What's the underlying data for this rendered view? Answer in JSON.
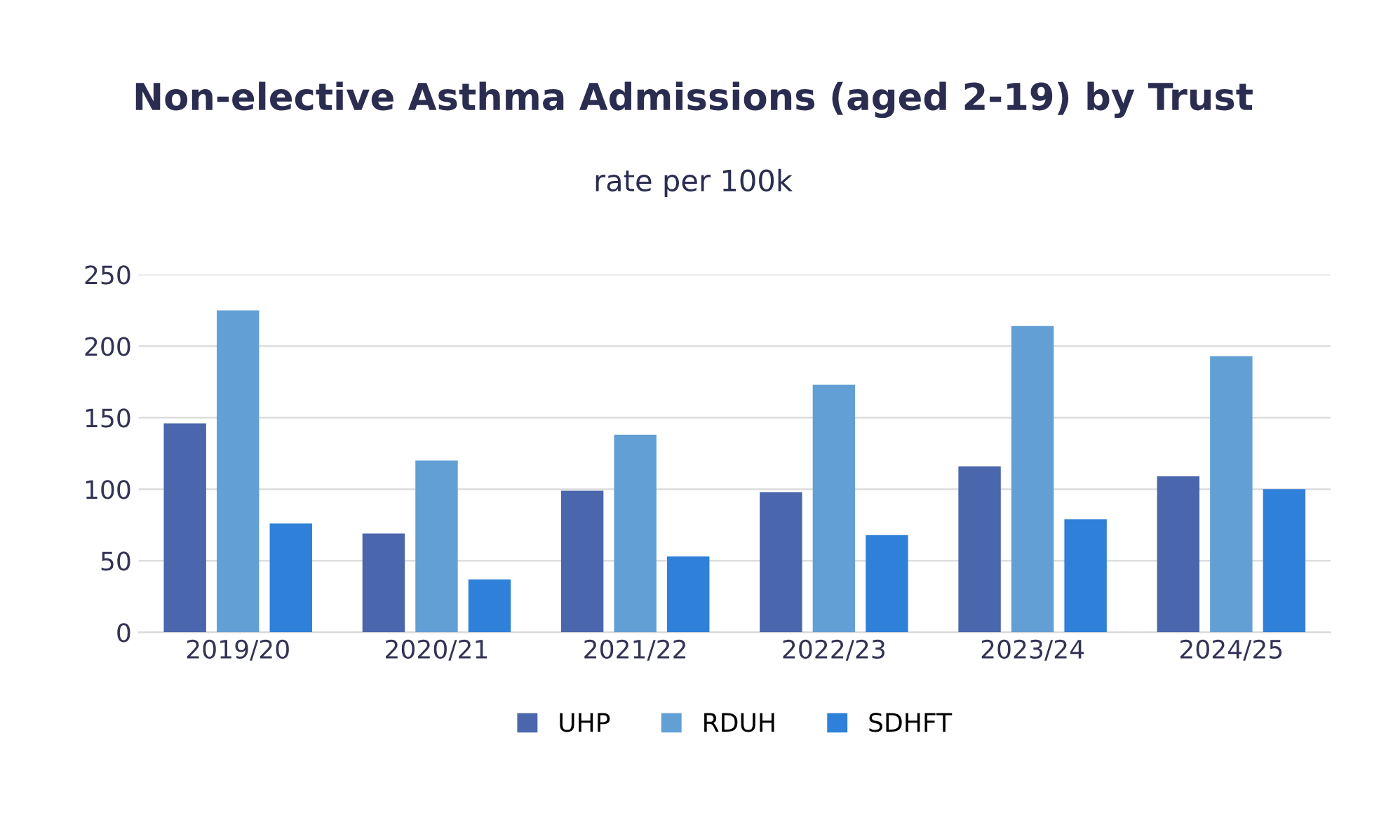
{
  "chart_data": {
    "type": "bar",
    "title": "Non-elective Asthma Admissions (aged 2-19) by Trust",
    "subtitle": "rate per 100k",
    "categories": [
      "2019/20",
      "2020/21",
      "2021/22",
      "2022/23",
      "2023/24",
      "2024/25"
    ],
    "series": [
      {
        "name": "UHP",
        "color": "#4a66ac",
        "values": [
          146,
          69,
          99,
          98,
          116,
          109
        ]
      },
      {
        "name": "RDUH",
        "color": "#629fd5",
        "values": [
          225,
          120,
          138,
          173,
          214,
          193
        ]
      },
      {
        "name": "SDHFT",
        "color": "#2f80d8",
        "values": [
          76,
          37,
          53,
          68,
          79,
          100
        ]
      }
    ],
    "ylim": [
      0,
      250
    ],
    "yticks": [
      0,
      50,
      100,
      150,
      200,
      250
    ],
    "grid": "y",
    "legend": "bottom"
  }
}
